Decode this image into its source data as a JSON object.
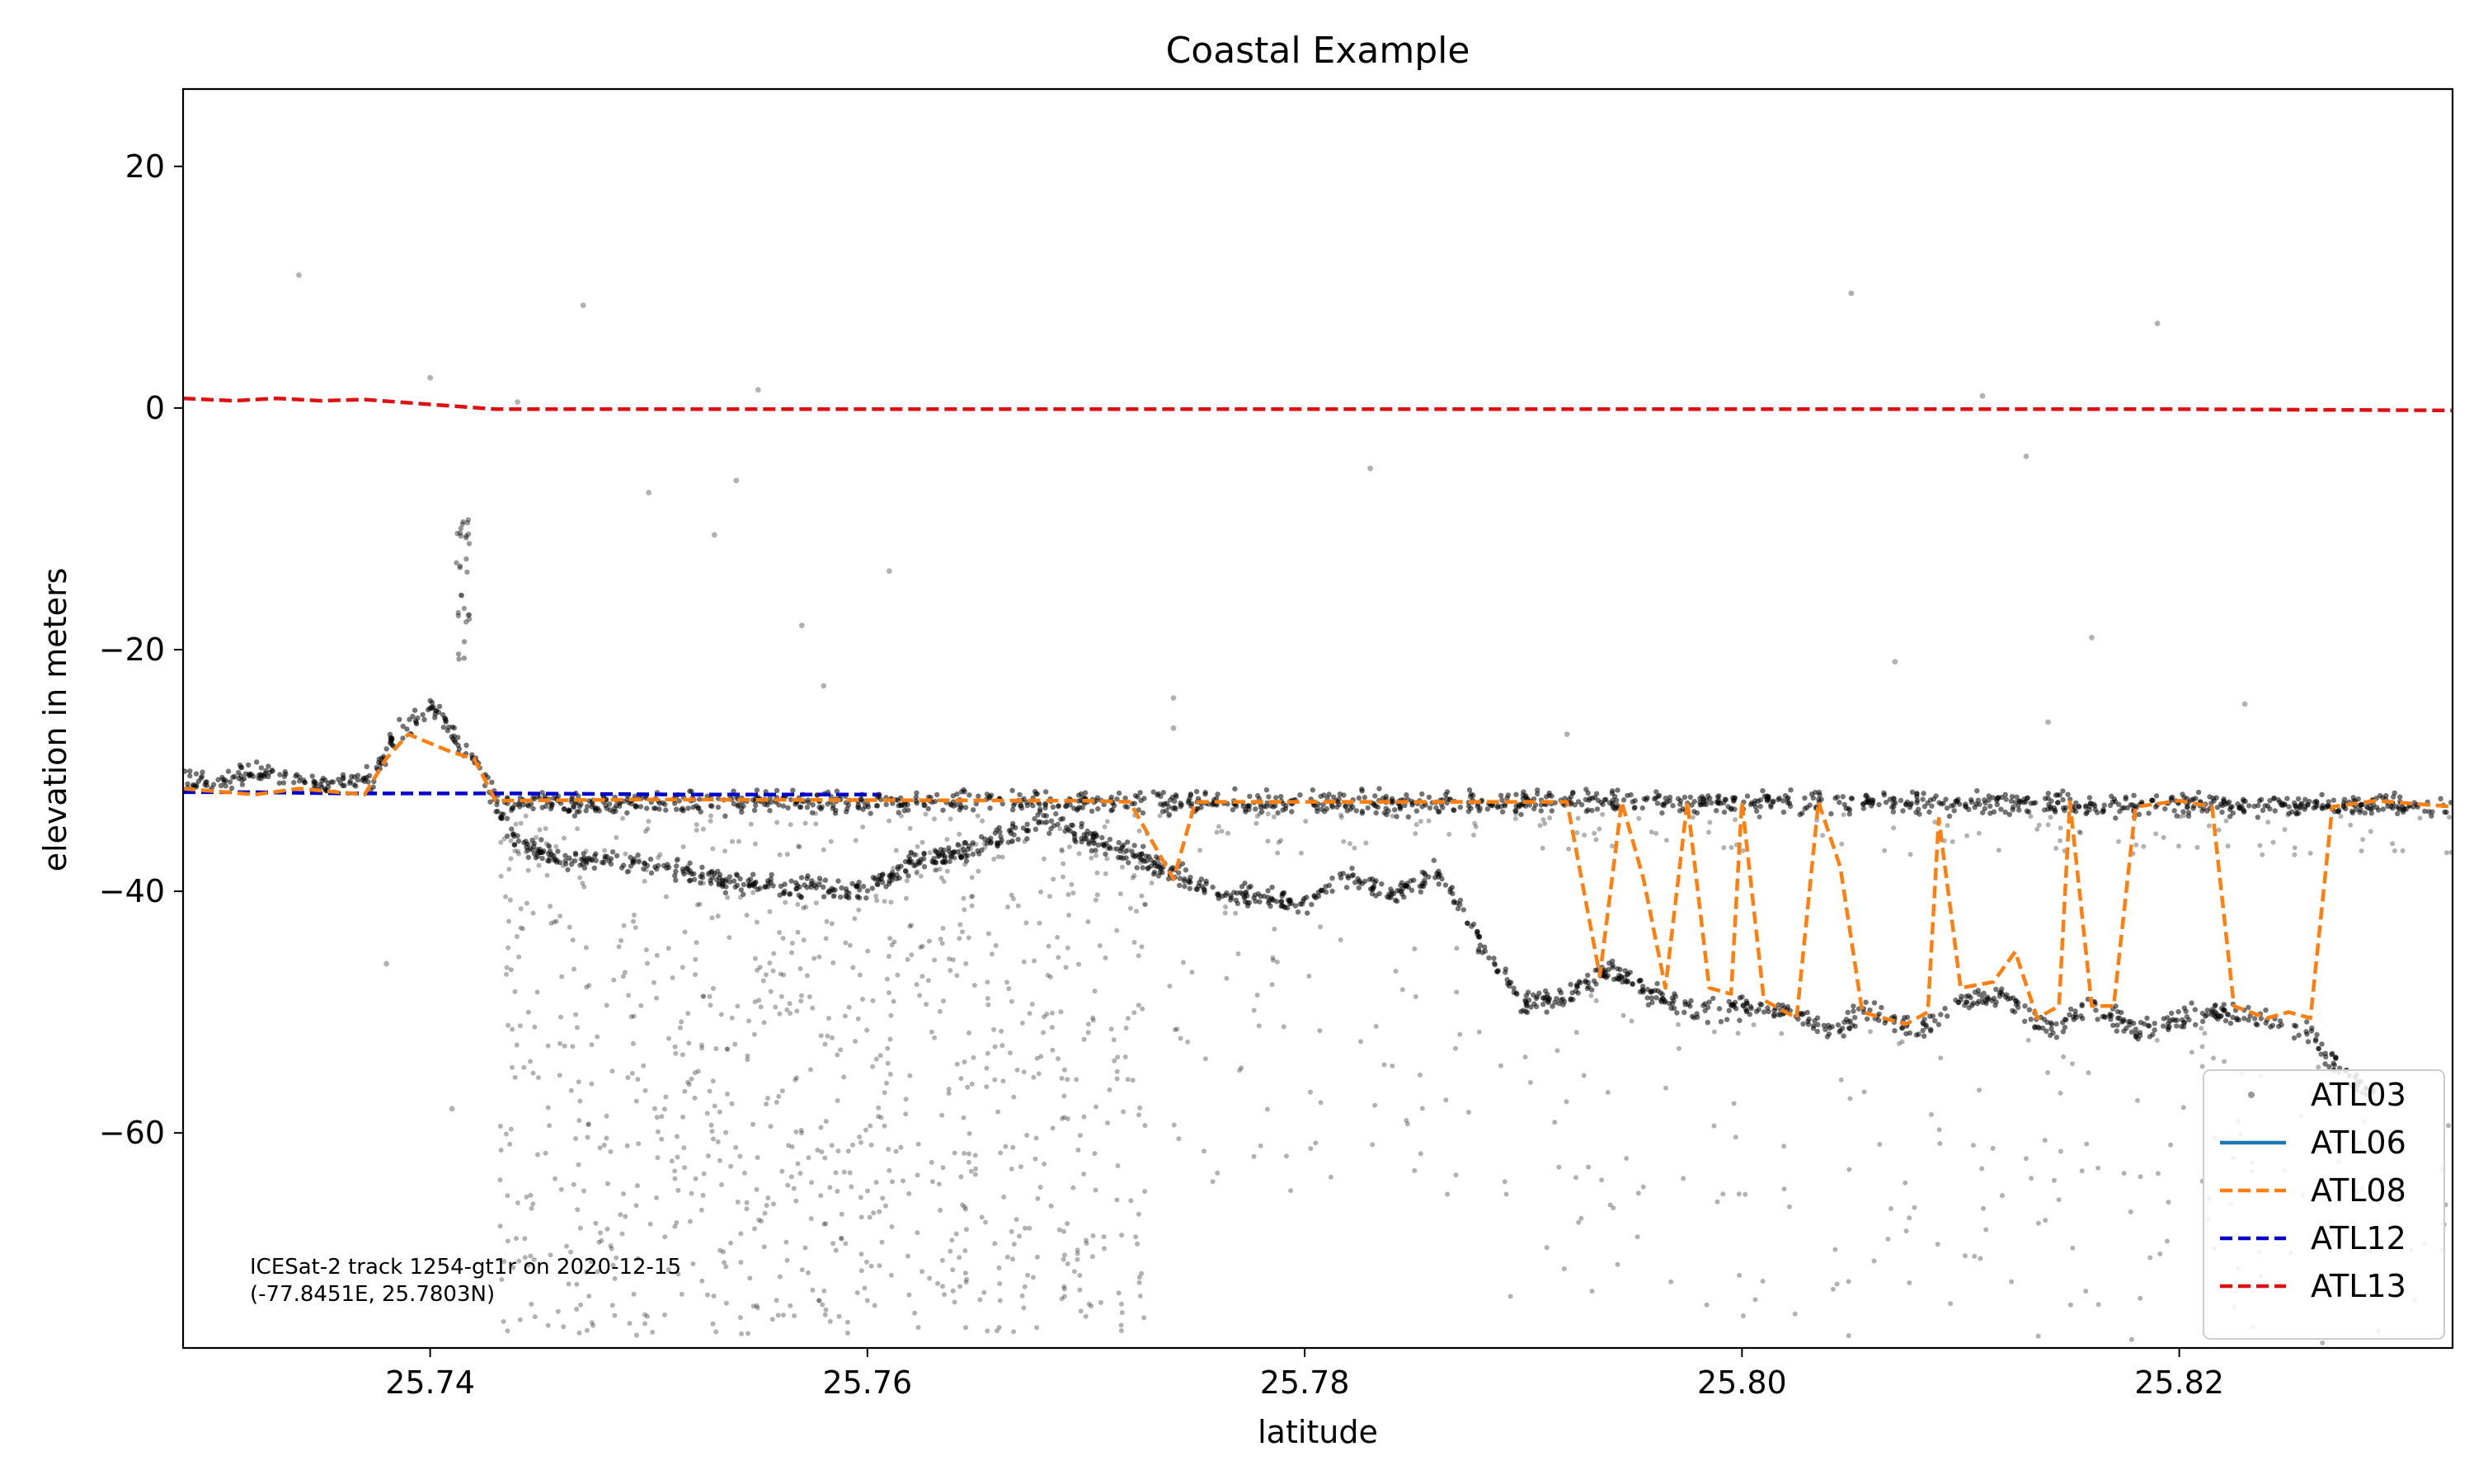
{
  "chart_data": {
    "type": "scatter",
    "title": "Coastal Example",
    "xlabel": "latitude",
    "ylabel": "elevation in meters",
    "xlim": [
      25.7287,
      25.8325
    ],
    "ylim": [
      -77.8,
      26.4
    ],
    "xticks": [
      25.74,
      25.76,
      25.78,
      25.8,
      25.82
    ],
    "xtick_labels": [
      "25.74",
      "25.76",
      "25.78",
      "25.80",
      "25.82"
    ],
    "yticks": [
      20,
      0,
      -20,
      -40,
      -60
    ],
    "ytick_labels": [
      "20",
      "0",
      "−20",
      "−40",
      "−60"
    ],
    "grid": false,
    "legend_position": "lower-right",
    "annotation": {
      "line1": "ICESat-2 track 1254-gt1r on 2020-12-15",
      "line2": "(-77.8451E, 25.7803N)"
    },
    "series": [
      {
        "name": "ATL03",
        "style": "scatter",
        "color": "#808080",
        "surface": [
          [
            25.7287,
            -30.6
          ],
          [
            25.73,
            -31.0
          ],
          [
            25.732,
            -30.0
          ],
          [
            25.734,
            -31.0
          ],
          [
            25.736,
            -31.2
          ],
          [
            25.7375,
            -30.5
          ],
          [
            25.7385,
            -26.5
          ],
          [
            25.7392,
            -26.0
          ],
          [
            25.74,
            -24.5
          ],
          [
            25.741,
            -27.0
          ],
          [
            25.742,
            -29.0
          ],
          [
            25.743,
            -32.5
          ],
          [
            25.745,
            -32.8
          ],
          [
            25.76,
            -32.6
          ],
          [
            25.78,
            -32.7
          ],
          [
            25.8,
            -32.6
          ],
          [
            25.82,
            -32.8
          ],
          [
            25.8325,
            -33.0
          ]
        ],
        "seafloor": [
          [
            25.743,
            -33.0
          ],
          [
            25.744,
            -36.0
          ],
          [
            25.746,
            -37.5
          ],
          [
            25.748,
            -37.5
          ],
          [
            25.75,
            -38.0
          ],
          [
            25.755,
            -39.5
          ],
          [
            25.758,
            -39.8
          ],
          [
            25.76,
            -40.0
          ],
          [
            25.762,
            -37.5
          ],
          [
            25.765,
            -36.5
          ],
          [
            25.767,
            -35.0
          ],
          [
            25.768,
            -34.0
          ],
          [
            25.77,
            -35.5
          ],
          [
            25.772,
            -37.0
          ],
          [
            25.774,
            -38.5
          ],
          [
            25.776,
            -40.0
          ],
          [
            25.778,
            -40.5
          ],
          [
            25.78,
            -41.0
          ],
          [
            25.782,
            -38.5
          ],
          [
            25.784,
            -40.5
          ],
          [
            25.786,
            -38.5
          ],
          [
            25.788,
            -44.0
          ],
          [
            25.79,
            -49.5
          ],
          [
            25.792,
            -48.5
          ],
          [
            25.794,
            -46.5
          ],
          [
            25.796,
            -48.5
          ],
          [
            25.798,
            -50.0
          ],
          [
            25.8,
            -49.5
          ],
          [
            25.802,
            -50.0
          ],
          [
            25.804,
            -51.5
          ],
          [
            25.806,
            -50.0
          ],
          [
            25.808,
            -51.5
          ],
          [
            25.81,
            -49.0
          ],
          [
            25.812,
            -48.5
          ],
          [
            25.814,
            -51.5
          ],
          [
            25.816,
            -49.5
          ],
          [
            25.818,
            -51.5
          ],
          [
            25.82,
            -50.5
          ],
          [
            25.822,
            -50.0
          ],
          [
            25.824,
            -50.5
          ],
          [
            25.826,
            -52.0
          ],
          [
            25.8275,
            -55.0
          ],
          [
            25.829,
            -57.0
          ]
        ],
        "outliers": [
          [
            25.734,
            11.0
          ],
          [
            25.738,
            -46.0
          ],
          [
            25.74,
            2.5
          ],
          [
            25.741,
            -58.0
          ],
          [
            25.744,
            0.5
          ],
          [
            25.747,
            8.5
          ],
          [
            25.75,
            -7.0
          ],
          [
            25.753,
            -10.5
          ],
          [
            25.754,
            -6.0
          ],
          [
            25.755,
            1.5
          ],
          [
            25.757,
            -18.0
          ],
          [
            25.758,
            -23.0
          ],
          [
            25.761,
            -13.5
          ],
          [
            25.774,
            -24.0
          ],
          [
            25.774,
            -26.5
          ],
          [
            25.783,
            -5.0
          ],
          [
            25.792,
            -27.0
          ],
          [
            25.805,
            9.5
          ],
          [
            25.807,
            -21.0
          ],
          [
            25.811,
            1.0
          ],
          [
            25.813,
            -4.0
          ],
          [
            25.814,
            -26.0
          ],
          [
            25.816,
            -19.0
          ],
          [
            25.819,
            7.0
          ],
          [
            25.823,
            -24.5
          ]
        ]
      },
      {
        "name": "ATL06",
        "style": "solid",
        "color": "#1f77b4",
        "points": []
      },
      {
        "name": "ATL08",
        "style": "dashed",
        "color": "#ff7f0e",
        "points": [
          [
            25.7287,
            -31.5
          ],
          [
            25.732,
            -32.0
          ],
          [
            25.734,
            -31.5
          ],
          [
            25.737,
            -32.0
          ],
          [
            25.738,
            -29.0
          ],
          [
            25.739,
            -27.0
          ],
          [
            25.741,
            -28.5
          ],
          [
            25.742,
            -29.0
          ],
          [
            25.743,
            -32.5
          ],
          [
            25.75,
            -32.4
          ],
          [
            25.77,
            -32.5
          ],
          [
            25.772,
            -32.6
          ],
          [
            25.774,
            -39.0
          ],
          [
            25.775,
            -32.6
          ],
          [
            25.792,
            -32.6
          ],
          [
            25.7935,
            -47.0
          ],
          [
            25.7945,
            -32.6
          ],
          [
            25.7955,
            -39.0
          ],
          [
            25.7965,
            -48.0
          ],
          [
            25.7975,
            -32.6
          ],
          [
            25.7985,
            -48.0
          ],
          [
            25.7995,
            -48.5
          ],
          [
            25.8,
            -32.6
          ],
          [
            25.801,
            -49.0
          ],
          [
            25.8025,
            -50.5
          ],
          [
            25.8035,
            -32.6
          ],
          [
            25.8045,
            -38.0
          ],
          [
            25.8055,
            -50.0
          ],
          [
            25.8075,
            -51.0
          ],
          [
            25.8085,
            -50.0
          ],
          [
            25.809,
            -34.0
          ],
          [
            25.81,
            -48.0
          ],
          [
            25.8115,
            -47.5
          ],
          [
            25.8125,
            -45.0
          ],
          [
            25.8135,
            -50.5
          ],
          [
            25.8145,
            -49.5
          ],
          [
            25.815,
            -32.6
          ],
          [
            25.816,
            -49.5
          ],
          [
            25.817,
            -49.5
          ],
          [
            25.818,
            -33.0
          ],
          [
            25.82,
            -32.5
          ],
          [
            25.8215,
            -33.0
          ],
          [
            25.8225,
            -49.5
          ],
          [
            25.824,
            -50.5
          ],
          [
            25.825,
            -50.0
          ],
          [
            25.826,
            -50.5
          ],
          [
            25.827,
            -33.0
          ],
          [
            25.829,
            -32.5
          ],
          [
            25.8325,
            -33.0
          ]
        ]
      },
      {
        "name": "ATL12",
        "style": "dashed",
        "color": "#0000cc",
        "points": [
          [
            25.7287,
            -31.8
          ],
          [
            25.732,
            -31.8
          ],
          [
            25.736,
            -31.9
          ],
          [
            25.744,
            -31.9
          ],
          [
            25.752,
            -32.0
          ],
          [
            25.7605,
            -32.0
          ]
        ]
      },
      {
        "name": "ATL13",
        "style": "dashed",
        "color": "#dd1111",
        "points": [
          [
            25.7287,
            0.8
          ],
          [
            25.731,
            0.6
          ],
          [
            25.733,
            0.8
          ],
          [
            25.735,
            0.6
          ],
          [
            25.737,
            0.7
          ],
          [
            25.74,
            0.3
          ],
          [
            25.743,
            -0.1
          ],
          [
            25.75,
            -0.1
          ],
          [
            25.76,
            -0.1
          ],
          [
            25.77,
            -0.1
          ],
          [
            25.78,
            -0.1
          ],
          [
            25.79,
            -0.1
          ],
          [
            25.8,
            -0.1
          ],
          [
            25.81,
            -0.1
          ],
          [
            25.82,
            -0.1
          ],
          [
            25.8325,
            -0.2
          ]
        ]
      }
    ]
  }
}
